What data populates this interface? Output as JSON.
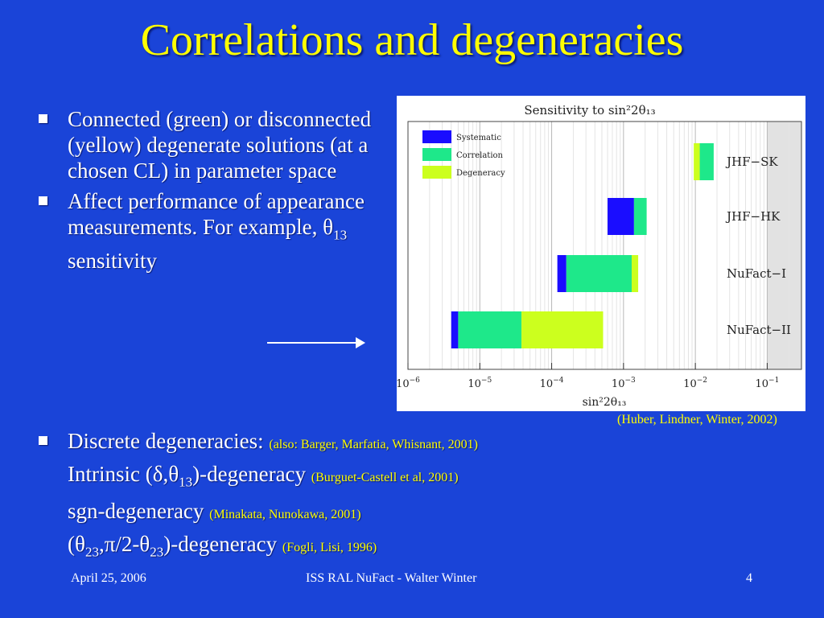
{
  "slide": {
    "title": "Correlations and degeneracies",
    "bullets_top": [
      {
        "text": "Connected (green) or disconnected (yellow) degenerate solutions (at a chosen CL) in parameter space"
      },
      {
        "text_before": "Affect performance of appearance measurements. For example, ",
        "symbol": "θ",
        "sub": "13",
        "text_after": " sensitivity"
      }
    ],
    "caption": "(Huber, Lindner, Winter, 2002)",
    "bottom": {
      "line1": {
        "text": "Discrete degeneracies: ",
        "ref": "(also: Barger, Marfatia, Whisnant, 2001)"
      },
      "line2": {
        "a": "Intrinsic (",
        "b": "δ,θ",
        "sub": "13",
        "c": ")-degeneracy ",
        "ref": "(Burguet-Castell et al, 2001)"
      },
      "line3": {
        "text": "sgn-degeneracy ",
        "ref": "(Minakata, Nunokawa, 2001)"
      },
      "line4": {
        "a": "(θ",
        "sub1": "23",
        "b": ",π/2-θ",
        "sub2": "23",
        "c": ")-degeneracy ",
        "ref": "(Fogli, Lisi, 1996)"
      }
    },
    "footer": {
      "date": "April 25, 2006",
      "center": "ISS RAL NuFact - Walter Winter",
      "page": "4"
    }
  },
  "chart_data": {
    "type": "bar",
    "orientation": "horizontal-stacked",
    "title": "Sensitivity to sin²2θ₁₃",
    "xlabel": "sin²2θ₁₃",
    "x_scale": "log",
    "xlim": [
      1e-06,
      0.3
    ],
    "x_ticks": [
      {
        "value": 1e-06,
        "label_base": "10",
        "label_exp": "−6"
      },
      {
        "value": 1e-05,
        "label_base": "10",
        "label_exp": "−5"
      },
      {
        "value": 0.0001,
        "label_base": "10",
        "label_exp": "−4"
      },
      {
        "value": 0.001,
        "label_base": "10",
        "label_exp": "−3"
      },
      {
        "value": 0.01,
        "label_base": "10",
        "label_exp": "−2"
      },
      {
        "value": 0.1,
        "label_base": "10",
        "label_exp": "−1"
      }
    ],
    "shaded_region": [
      0.1,
      0.3
    ],
    "legend": {
      "position": "top-left",
      "entries": [
        {
          "name": "Systematic",
          "color": "#1a0dff"
        },
        {
          "name": "Correlation",
          "color": "#1ee88a"
        },
        {
          "name": "Degeneracy",
          "color": "#ccff1e"
        }
      ]
    },
    "experiments": [
      {
        "name": "JHF−SK",
        "systematic": [
          0.0095,
          0.0095
        ],
        "correlation": [
          0.0115,
          0.018
        ],
        "degeneracy": [
          0.0095,
          0.0115
        ]
      },
      {
        "name": "JHF−HK",
        "systematic": [
          0.0006,
          0.0014
        ],
        "correlation": [
          0.0014,
          0.0021
        ],
        "degeneracy": [
          0.0021,
          0.0021
        ]
      },
      {
        "name": "NuFact−I",
        "systematic": [
          0.00012,
          0.00016
        ],
        "correlation": [
          0.00016,
          0.0013
        ],
        "degeneracy": [
          0.0013,
          0.0016
        ]
      },
      {
        "name": "NuFact−II",
        "systematic": [
          4e-06,
          5e-06
        ],
        "correlation": [
          5e-06,
          3.8e-05
        ],
        "degeneracy": [
          3.8e-05,
          0.00052
        ]
      }
    ]
  }
}
